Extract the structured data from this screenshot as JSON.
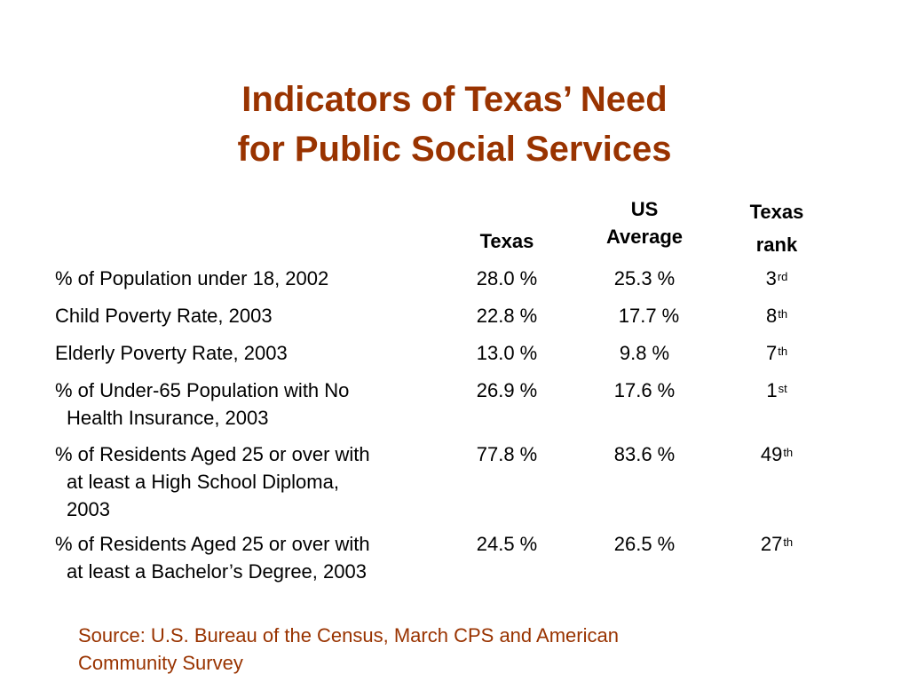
{
  "title": {
    "line1": "Indicators of Texas’ Need",
    "line2": "for Public Social Services"
  },
  "table": {
    "headers": {
      "texas": "Texas",
      "us_line1": "US",
      "us_line2": "Average",
      "rank_line1": "Texas",
      "rank_line2": "rank"
    },
    "rows": [
      {
        "label_line1": "% of Population under 18, 2002",
        "label_line2": "",
        "label_line3": "",
        "texas": "28.0 %",
        "us": "25.3 %",
        "rank_num": "3",
        "rank_suffix": "rd"
      },
      {
        "label_line1": "Child Poverty Rate, 2003",
        "label_line2": "",
        "label_line3": "",
        "texas": "22.8 %",
        "us": "17.7 %",
        "rank_num": "8",
        "rank_suffix": "th"
      },
      {
        "label_line1": "Elderly Poverty Rate, 2003",
        "label_line2": "",
        "label_line3": "",
        "texas": "13.0 %",
        "us": "9.8 %",
        "rank_num": "7",
        "rank_suffix": "th"
      },
      {
        "label_line1": "% of Under-65 Population with No",
        "label_line2": "Health Insurance, 2003",
        "label_line3": "",
        "texas": "26.9 %",
        "us": "17.6 %",
        "rank_num": "1",
        "rank_suffix": "st"
      },
      {
        "label_line1": "% of Residents Aged 25 or over with",
        "label_line2": "at least a High School Diploma,",
        "label_line3": "2003",
        "texas": "77.8 %",
        "us": "83.6 %",
        "rank_num": "49",
        "rank_suffix": "th"
      },
      {
        "label_line1": "% of Residents Aged 25 or over with",
        "label_line2": "at least a Bachelor’s Degree, 2003",
        "label_line3": "",
        "texas": "24.5 %",
        "us": "26.5 %",
        "rank_num": "27",
        "rank_suffix": "th"
      }
    ]
  },
  "source": {
    "line1": "Source: U.S. Bureau of the Census, March CPS and American",
    "line2": "Community Survey"
  },
  "colors": {
    "title": "#993300",
    "source": "#993300",
    "text": "#000000",
    "background": "#ffffff"
  }
}
